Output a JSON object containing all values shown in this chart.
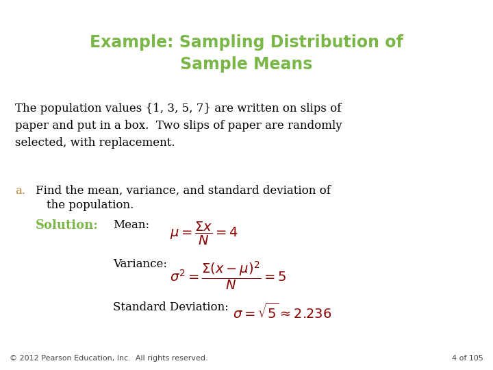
{
  "title_line1": "Example: Sampling Distribution of",
  "title_line2": "Sample Means",
  "title_color": "#7ab648",
  "title_fontsize": 17,
  "body_text_1": "The population values {1, 3, 5, 7} are written on slips of\npaper and put in a box.  Two slips of paper are randomly\nselected, with replacement.",
  "item_a_label": "a.",
  "item_a_label_color": "#c8813a",
  "item_a_text_line1": "Find the mean, variance, and standard deviation of",
  "item_a_text_line2": "the population.",
  "solution_label": "Solution:",
  "solution_color": "#7ab648",
  "mean_label": "Mean:",
  "mean_formula": "$\\mu = \\dfrac{\\Sigma x}{N} = 4$",
  "variance_label": "Variance:",
  "variance_formula": "$\\sigma^2 = \\dfrac{\\Sigma(x - \\mu)^2}{N} = 5$",
  "stddev_label": "Standard Deviation:",
  "stddev_formula": "$\\sigma = \\sqrt{5} \\approx 2.236$",
  "formula_color": "#8b0000",
  "footer_left": "© 2012 Pearson Education, Inc.  All rights reserved.",
  "footer_right": "4 of 105",
  "bg_color": "#ffffff",
  "text_color": "#000000",
  "body_fontsize": 12,
  "label_fontsize": 12,
  "formula_fontsize": 12,
  "footer_fontsize": 8
}
